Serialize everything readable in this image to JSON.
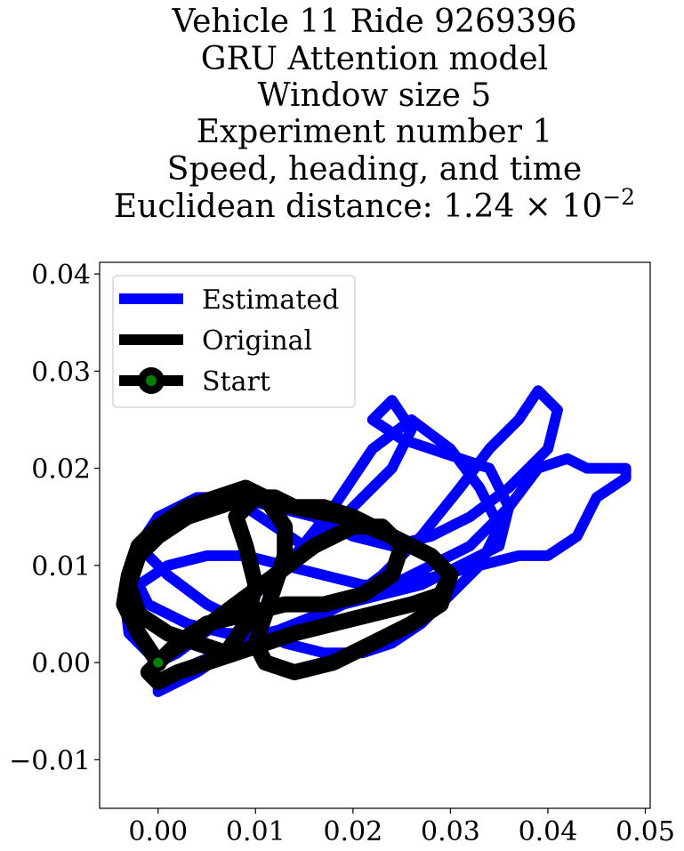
{
  "chart_data": {
    "type": "line",
    "title_lines": [
      "Vehicle 11 Ride 9269396",
      "GRU Attention model",
      "Window size 5",
      "Experiment number 1",
      "Speed, heading, and time"
    ],
    "title_metric": {
      "prefix": "Euclidean distance: ",
      "mantissa": "1.24",
      "times": "×",
      "base": "10",
      "exponent": "−2"
    },
    "xlim": [
      -0.006,
      0.0505
    ],
    "ylim": [
      -0.015,
      0.0412
    ],
    "x_ticks": [
      0.0,
      0.01,
      0.02,
      0.03,
      0.04,
      0.05
    ],
    "x_tick_labels": [
      "0.00",
      "0.01",
      "0.02",
      "0.03",
      "0.04",
      "0.05"
    ],
    "y_ticks": [
      -0.01,
      0.0,
      0.01,
      0.02,
      0.03,
      0.04
    ],
    "y_tick_labels": [
      "−0.01",
      "0.00",
      "0.01",
      "0.02",
      "0.03",
      "0.04"
    ],
    "grid": false,
    "legend_position": "top-left",
    "series": [
      {
        "name": "Estimated",
        "color": "#0000ff",
        "x": [
          0.0,
          -0.003,
          -0.0035,
          -0.002,
          0.0,
          0.003,
          0.006,
          0.009,
          0.012,
          0.015,
          0.018,
          0.021,
          0.024,
          0.026,
          0.024,
          0.022,
          0.025,
          0.028,
          0.031,
          0.034,
          0.036,
          0.035,
          0.031,
          0.027,
          0.023,
          0.019,
          0.015,
          0.011,
          0.007,
          0.004,
          0.0,
          0.0,
          0.004,
          0.009,
          0.014,
          0.019,
          0.024,
          0.028,
          0.032,
          0.036,
          0.039,
          0.042,
          0.044,
          0.048,
          0.048,
          0.045,
          0.043,
          0.04,
          0.037,
          0.033,
          0.029,
          0.025,
          0.021,
          0.017,
          0.013,
          0.009,
          0.005,
          0.001,
          -0.002,
          -0.001,
          0.003,
          0.007,
          0.011,
          0.015,
          0.019,
          0.023,
          0.027,
          0.031,
          0.034,
          0.037,
          0.039,
          0.041,
          0.04,
          0.036,
          0.032,
          0.028,
          0.024,
          0.02,
          0.016,
          0.012,
          0.008,
          0.004,
          0.0,
          -0.002,
          0.001,
          0.005,
          0.009,
          0.013,
          0.017,
          0.021,
          0.024,
          0.027,
          0.03,
          0.033,
          0.035,
          0.033,
          0.03,
          0.026,
          0.022,
          0.018,
          0.014,
          0.01,
          0.006,
          0.002,
          0.0
        ],
        "y": [
          0.0,
          0.003,
          0.007,
          0.011,
          0.014,
          0.016,
          0.017,
          0.016,
          0.014,
          0.012,
          0.014,
          0.017,
          0.02,
          0.024,
          0.027,
          0.025,
          0.023,
          0.022,
          0.021,
          0.02,
          0.016,
          0.012,
          0.01,
          0.008,
          0.007,
          0.006,
          0.004,
          0.003,
          0.001,
          -0.001,
          -0.003,
          -0.002,
          0.0,
          0.002,
          0.004,
          0.006,
          0.008,
          0.01,
          0.012,
          0.016,
          0.02,
          0.021,
          0.02,
          0.02,
          0.019,
          0.017,
          0.013,
          0.011,
          0.011,
          0.01,
          0.009,
          0.008,
          0.008,
          0.009,
          0.01,
          0.011,
          0.011,
          0.01,
          0.008,
          0.006,
          0.004,
          0.003,
          0.003,
          0.004,
          0.006,
          0.009,
          0.013,
          0.018,
          0.022,
          0.025,
          0.028,
          0.026,
          0.022,
          0.018,
          0.015,
          0.013,
          0.012,
          0.013,
          0.015,
          0.016,
          0.017,
          0.017,
          0.015,
          0.012,
          0.009,
          0.006,
          0.004,
          0.002,
          0.001,
          0.001,
          0.002,
          0.004,
          0.007,
          0.01,
          0.014,
          0.018,
          0.022,
          0.025,
          0.022,
          0.016,
          0.011,
          0.007,
          0.004,
          0.001,
          0.0
        ]
      },
      {
        "name": "Original",
        "color": "#000000",
        "x": [
          0.0,
          -0.002,
          -0.0035,
          -0.003,
          -0.002,
          0.0,
          0.003,
          0.006,
          0.009,
          0.011,
          0.013,
          0.013,
          0.012,
          0.011,
          0.01,
          0.011,
          0.014,
          0.018,
          0.022,
          0.026,
          0.029,
          0.03,
          0.028,
          0.024,
          0.02,
          0.017,
          0.014,
          0.012,
          0.009,
          0.006,
          0.003,
          0.0,
          -0.002,
          -0.003,
          -0.002,
          0.001,
          0.004,
          0.007,
          0.009,
          0.01,
          0.009,
          0.008,
          0.01,
          0.014,
          0.019,
          0.024,
          0.028,
          0.03,
          0.029,
          0.026,
          0.022,
          0.018,
          0.014,
          0.011,
          0.008,
          0.005,
          0.002,
          0.0,
          -0.001,
          0.001,
          0.004,
          0.008,
          0.012,
          0.016,
          0.02,
          0.023,
          0.025,
          0.024,
          0.021,
          0.017,
          0.013,
          0.009,
          0.005,
          0.002,
          0.0
        ],
        "y": [
          0.0,
          0.003,
          0.006,
          0.009,
          0.012,
          0.014,
          0.016,
          0.017,
          0.018,
          0.017,
          0.014,
          0.011,
          0.008,
          0.005,
          0.002,
          0.0,
          -0.001,
          0.0,
          0.002,
          0.004,
          0.006,
          0.009,
          0.011,
          0.013,
          0.015,
          0.016,
          0.016,
          0.017,
          0.017,
          0.016,
          0.015,
          0.013,
          0.011,
          0.008,
          0.005,
          0.003,
          0.002,
          0.001,
          0.004,
          0.008,
          0.012,
          0.015,
          0.017,
          0.016,
          0.015,
          0.013,
          0.011,
          0.009,
          0.007,
          0.006,
          0.005,
          0.004,
          0.003,
          0.002,
          0.001,
          0.0,
          -0.001,
          -0.002,
          -0.001,
          0.001,
          0.003,
          0.006,
          0.009,
          0.012,
          0.014,
          0.014,
          0.012,
          0.009,
          0.007,
          0.006,
          0.006,
          0.005,
          0.004,
          0.002,
          0.0
        ]
      }
    ],
    "start_point": {
      "name": "Start",
      "x": 0.0,
      "y": 0.0,
      "outer_color": "#000000",
      "inner_color": "#008000"
    },
    "legend": [
      {
        "label": "Estimated",
        "color": "#0000ff",
        "marker": false
      },
      {
        "label": "Original",
        "color": "#000000",
        "marker": false
      },
      {
        "label": "Start",
        "color": "#000000",
        "marker": true,
        "marker_color": "#008000"
      }
    ]
  }
}
